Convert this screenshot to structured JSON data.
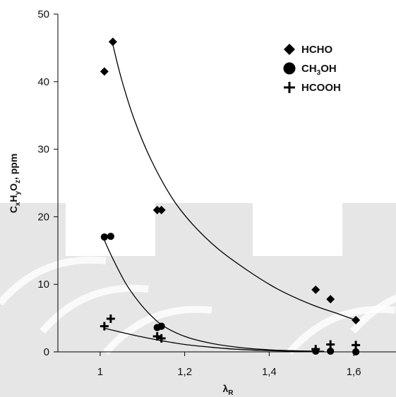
{
  "chart_data": {
    "type": "scatter",
    "watermark_color": "#e6e6e6",
    "x": {
      "label_main": "λ",
      "label_sub": "R",
      "range": [
        0.9,
        1.7
      ],
      "ticks": [
        1,
        1.2,
        1.4,
        1.6
      ],
      "tick_labels": [
        "1",
        "1,2",
        "1,4",
        "1,6"
      ]
    },
    "y": {
      "label_parts": [
        {
          "text": "C",
          "sub": false
        },
        {
          "text": "x",
          "sub": true
        },
        {
          "text": "H",
          "sub": false
        },
        {
          "text": "y",
          "sub": true
        },
        {
          "text": "O",
          "sub": false
        },
        {
          "text": "z",
          "sub": true
        },
        {
          "text": ", ppm",
          "sub": false
        }
      ],
      "range": [
        0,
        50
      ],
      "ticks": [
        0,
        10,
        20,
        30,
        40,
        50
      ],
      "tick_labels": [
        "0",
        "10",
        "20",
        "30",
        "40",
        "50"
      ]
    },
    "series": [
      {
        "name": "HCHO",
        "legend_parts": [
          {
            "text": "HCHO",
            "sub": false
          }
        ],
        "marker": "diamond",
        "color": "#000000",
        "points": [
          [
            1.01,
            41.5
          ],
          [
            1.03,
            45.9
          ],
          [
            1.135,
            21.0
          ],
          [
            1.145,
            21.0
          ],
          [
            1.51,
            9.2
          ],
          [
            1.545,
            7.8
          ],
          [
            1.605,
            4.7
          ]
        ],
        "fit": [
          [
            1.03,
            45.5
          ],
          [
            1.05,
            40.5
          ],
          [
            1.08,
            34.5
          ],
          [
            1.12,
            28.5
          ],
          [
            1.17,
            22.8
          ],
          [
            1.22,
            18.8
          ],
          [
            1.28,
            15.2
          ],
          [
            1.35,
            12.0
          ],
          [
            1.42,
            9.3
          ],
          [
            1.5,
            7.0
          ],
          [
            1.56,
            5.7
          ],
          [
            1.605,
            4.7
          ]
        ]
      },
      {
        "name": "CH3OH",
        "legend_parts": [
          {
            "text": "CH",
            "sub": false
          },
          {
            "text": "3",
            "sub": true
          },
          {
            "text": "OH",
            "sub": false
          }
        ],
        "marker": "circle",
        "color": "#000000",
        "points": [
          [
            1.01,
            17.0
          ],
          [
            1.025,
            17.1
          ],
          [
            1.135,
            3.6
          ],
          [
            1.145,
            3.8
          ],
          [
            1.51,
            0.1
          ],
          [
            1.545,
            0.1
          ],
          [
            1.605,
            0.0
          ]
        ],
        "fit": [
          [
            1.01,
            16.5
          ],
          [
            1.03,
            13.8
          ],
          [
            1.06,
            10.2
          ],
          [
            1.09,
            7.5
          ],
          [
            1.12,
            5.4
          ],
          [
            1.15,
            3.8
          ],
          [
            1.2,
            2.3
          ],
          [
            1.26,
            1.3
          ],
          [
            1.33,
            0.65
          ],
          [
            1.4,
            0.3
          ],
          [
            1.47,
            0.15
          ],
          [
            1.53,
            0.08
          ]
        ]
      },
      {
        "name": "HCOOH",
        "legend_parts": [
          {
            "text": "HCOOH",
            "sub": false
          }
        ],
        "marker": "plus",
        "color": "#000000",
        "points": [
          [
            1.01,
            3.8
          ],
          [
            1.025,
            4.9
          ],
          [
            1.135,
            2.3
          ],
          [
            1.145,
            2.0
          ],
          [
            1.51,
            0.4
          ],
          [
            1.545,
            1.1
          ],
          [
            1.605,
            1.0
          ]
        ],
        "fit": [
          [
            1.01,
            3.5
          ],
          [
            1.05,
            2.9
          ],
          [
            1.1,
            2.2
          ],
          [
            1.15,
            1.6
          ],
          [
            1.2,
            1.1
          ],
          [
            1.26,
            0.7
          ],
          [
            1.32,
            0.4
          ],
          [
            1.38,
            0.22
          ],
          [
            1.44,
            0.12
          ],
          [
            1.5,
            0.06
          ]
        ]
      }
    ],
    "legend_position": "top-right",
    "grid": false
  }
}
